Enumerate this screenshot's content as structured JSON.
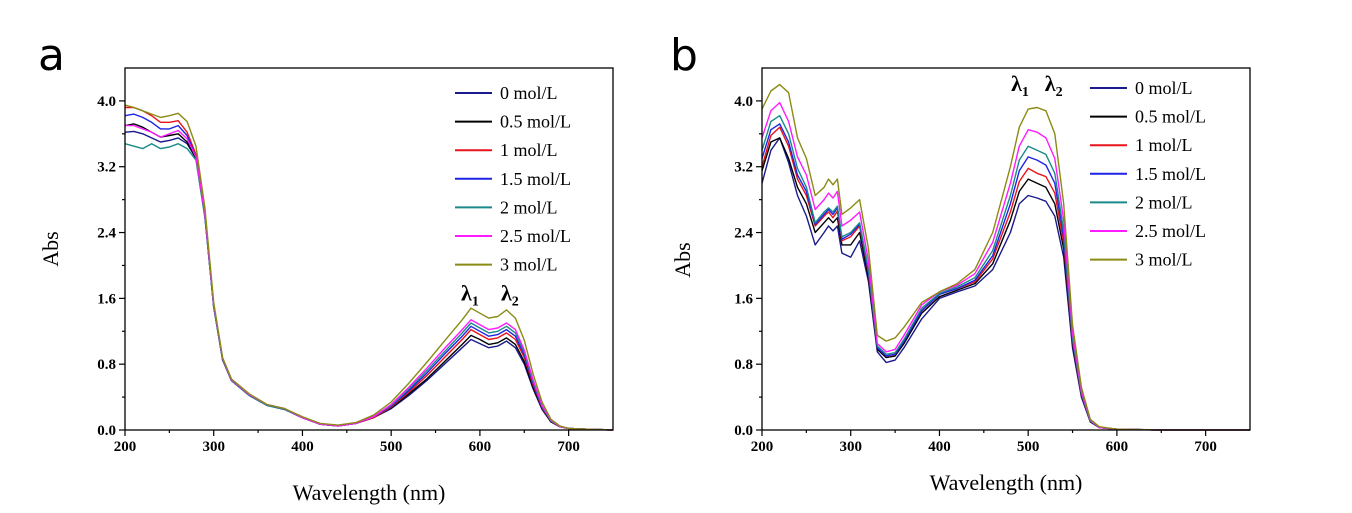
{
  "chart_data": [
    {
      "type": "line",
      "panel_label": "a",
      "xlabel": "Wavelength (nm)",
      "ylabel": "Abs",
      "xlim": [
        200,
        750
      ],
      "ylim": [
        0,
        4.4
      ],
      "xticks": [
        "200",
        "300",
        "400",
        "500",
        "600",
        "700"
      ],
      "yticks": [
        "0.0",
        "0.8",
        "1.6",
        "2.4",
        "3.2",
        "4.0"
      ],
      "legend_position": "top-right",
      "annotations": [
        {
          "main": "λ",
          "sub": "1",
          "x": 590,
          "y": 1.5
        },
        {
          "main": "λ",
          "sub": "2",
          "x": 635,
          "y": 1.5
        }
      ],
      "x": [
        200,
        210,
        220,
        230,
        240,
        250,
        260,
        270,
        280,
        290,
        300,
        310,
        320,
        340,
        360,
        380,
        400,
        420,
        440,
        460,
        480,
        500,
        520,
        540,
        560,
        580,
        590,
        600,
        610,
        620,
        630,
        640,
        650,
        660,
        670,
        680,
        690,
        700,
        720,
        750
      ],
      "series": [
        {
          "name": "0 mol/L",
          "color": "#1a1a8c",
          "values": [
            3.62,
            3.63,
            3.6,
            3.55,
            3.5,
            3.52,
            3.55,
            3.48,
            3.3,
            2.6,
            1.5,
            0.85,
            0.6,
            0.42,
            0.3,
            0.25,
            0.15,
            0.07,
            0.05,
            0.08,
            0.15,
            0.26,
            0.42,
            0.6,
            0.8,
            1.0,
            1.1,
            1.05,
            1.0,
            1.02,
            1.08,
            1.0,
            0.8,
            0.5,
            0.25,
            0.1,
            0.04,
            0.02,
            0.01,
            0.0
          ]
        },
        {
          "name": "0.5 mol/L",
          "color": "#000000",
          "values": [
            3.7,
            3.72,
            3.68,
            3.62,
            3.56,
            3.58,
            3.6,
            3.5,
            3.3,
            2.6,
            1.5,
            0.86,
            0.6,
            0.42,
            0.3,
            0.25,
            0.15,
            0.07,
            0.05,
            0.08,
            0.15,
            0.27,
            0.44,
            0.62,
            0.83,
            1.04,
            1.15,
            1.1,
            1.04,
            1.06,
            1.12,
            1.04,
            0.83,
            0.52,
            0.26,
            0.1,
            0.04,
            0.02,
            0.01,
            0.0
          ]
        },
        {
          "name": "1 mol/L",
          "color": "#e8141b",
          "values": [
            3.92,
            3.92,
            3.88,
            3.82,
            3.74,
            3.74,
            3.76,
            3.62,
            3.35,
            2.62,
            1.52,
            0.86,
            0.6,
            0.43,
            0.3,
            0.25,
            0.15,
            0.07,
            0.05,
            0.08,
            0.15,
            0.28,
            0.46,
            0.66,
            0.88,
            1.1,
            1.22,
            1.16,
            1.1,
            1.12,
            1.18,
            1.1,
            0.88,
            0.55,
            0.27,
            0.11,
            0.04,
            0.02,
            0.01,
            0.0
          ]
        },
        {
          "name": "1.5 mol/L",
          "color": "#1f23e6",
          "values": [
            3.82,
            3.84,
            3.8,
            3.74,
            3.66,
            3.66,
            3.7,
            3.58,
            3.32,
            2.6,
            1.5,
            0.86,
            0.6,
            0.42,
            0.3,
            0.25,
            0.15,
            0.07,
            0.05,
            0.08,
            0.16,
            0.29,
            0.48,
            0.69,
            0.92,
            1.14,
            1.26,
            1.2,
            1.14,
            1.16,
            1.22,
            1.14,
            0.91,
            0.57,
            0.28,
            0.11,
            0.04,
            0.02,
            0.01,
            0.0
          ]
        },
        {
          "name": "2 mol/L",
          "color": "#1a8a8a",
          "values": [
            3.48,
            3.45,
            3.42,
            3.48,
            3.42,
            3.44,
            3.48,
            3.42,
            3.28,
            2.58,
            1.5,
            0.86,
            0.6,
            0.42,
            0.3,
            0.25,
            0.15,
            0.07,
            0.05,
            0.08,
            0.16,
            0.3,
            0.5,
            0.72,
            0.95,
            1.18,
            1.3,
            1.24,
            1.18,
            1.2,
            1.26,
            1.18,
            0.94,
            0.59,
            0.29,
            0.11,
            0.04,
            0.02,
            0.01,
            0.0
          ]
        },
        {
          "name": "2.5 mol/L",
          "color": "#ff1aff",
          "values": [
            3.7,
            3.7,
            3.66,
            3.62,
            3.56,
            3.6,
            3.64,
            3.54,
            3.32,
            2.62,
            1.52,
            0.87,
            0.61,
            0.43,
            0.31,
            0.26,
            0.15,
            0.07,
            0.05,
            0.08,
            0.16,
            0.31,
            0.52,
            0.75,
            0.99,
            1.22,
            1.34,
            1.28,
            1.22,
            1.24,
            1.3,
            1.22,
            0.97,
            0.61,
            0.3,
            0.12,
            0.04,
            0.02,
            0.01,
            0.0
          ]
        },
        {
          "name": "3 mol/L",
          "color": "#8a8a14",
          "values": [
            3.95,
            3.92,
            3.88,
            3.84,
            3.8,
            3.82,
            3.85,
            3.75,
            3.45,
            2.7,
            1.55,
            0.88,
            0.62,
            0.44,
            0.31,
            0.26,
            0.16,
            0.08,
            0.06,
            0.09,
            0.18,
            0.34,
            0.57,
            0.82,
            1.08,
            1.34,
            1.48,
            1.42,
            1.36,
            1.38,
            1.46,
            1.36,
            1.09,
            0.68,
            0.34,
            0.13,
            0.05,
            0.02,
            0.01,
            0.0
          ]
        }
      ]
    },
    {
      "type": "line",
      "panel_label": "b",
      "xlabel": "Wavelength (nm)",
      "ylabel": "Abs",
      "xlim": [
        200,
        750
      ],
      "ylim": [
        0,
        4.4
      ],
      "xticks": [
        "200",
        "300",
        "400",
        "500",
        "600",
        "700"
      ],
      "yticks": [
        "0.0",
        "0.8",
        "1.6",
        "2.4",
        "3.2",
        "4.0"
      ],
      "legend_position": "top-right",
      "annotations": [
        {
          "main": "λ",
          "sub": "1",
          "x": 492,
          "y": 4.05
        },
        {
          "main": "λ",
          "sub": "2",
          "x": 530,
          "y": 4.05
        }
      ],
      "x": [
        200,
        210,
        220,
        230,
        240,
        250,
        260,
        270,
        275,
        280,
        285,
        290,
        300,
        310,
        320,
        330,
        340,
        350,
        360,
        380,
        400,
        420,
        440,
        460,
        480,
        490,
        500,
        510,
        520,
        530,
        540,
        550,
        560,
        570,
        580,
        600,
        650,
        700,
        750
      ],
      "series": [
        {
          "name": "0 mol/L",
          "color": "#1a1a8c",
          "values": [
            3.0,
            3.4,
            3.55,
            3.25,
            2.85,
            2.6,
            2.25,
            2.4,
            2.48,
            2.42,
            2.48,
            2.15,
            2.1,
            2.3,
            1.8,
            0.95,
            0.82,
            0.85,
            1.0,
            1.35,
            1.6,
            1.68,
            1.75,
            1.95,
            2.4,
            2.75,
            2.85,
            2.82,
            2.78,
            2.6,
            2.1,
            1.0,
            0.4,
            0.1,
            0.03,
            0.01,
            0.0,
            0.0,
            0.0
          ]
        },
        {
          "name": "0.5 mol/L",
          "color": "#000000",
          "values": [
            3.15,
            3.5,
            3.55,
            3.3,
            2.95,
            2.75,
            2.4,
            2.52,
            2.58,
            2.52,
            2.58,
            2.25,
            2.25,
            2.4,
            1.85,
            0.98,
            0.88,
            0.9,
            1.05,
            1.42,
            1.62,
            1.7,
            1.78,
            2.02,
            2.55,
            2.9,
            3.05,
            3.0,
            2.95,
            2.75,
            2.2,
            1.05,
            0.42,
            0.1,
            0.03,
            0.01,
            0.0,
            0.0,
            0.0
          ]
        },
        {
          "name": "1 mol/L",
          "color": "#e8141b",
          "values": [
            3.2,
            3.58,
            3.68,
            3.45,
            3.05,
            2.85,
            2.48,
            2.6,
            2.65,
            2.58,
            2.66,
            2.3,
            2.35,
            2.48,
            1.9,
            1.0,
            0.9,
            0.92,
            1.08,
            1.45,
            1.65,
            1.72,
            1.8,
            2.08,
            2.65,
            3.02,
            3.18,
            3.12,
            3.08,
            2.88,
            2.28,
            1.08,
            0.43,
            0.11,
            0.03,
            0.01,
            0.0,
            0.0,
            0.0
          ]
        },
        {
          "name": "1.5 mol/L",
          "color": "#1f23e6",
          "values": [
            3.3,
            3.65,
            3.72,
            3.5,
            3.1,
            2.9,
            2.5,
            2.62,
            2.68,
            2.62,
            2.7,
            2.32,
            2.38,
            2.5,
            1.92,
            1.0,
            0.9,
            0.92,
            1.08,
            1.45,
            1.65,
            1.72,
            1.82,
            2.12,
            2.75,
            3.15,
            3.32,
            3.28,
            3.22,
            3.0,
            2.35,
            1.1,
            0.44,
            0.11,
            0.03,
            0.01,
            0.0,
            0.0,
            0.0
          ]
        },
        {
          "name": "2 mol/L",
          "color": "#1a8a8a",
          "values": [
            3.4,
            3.75,
            3.82,
            3.6,
            3.18,
            2.95,
            2.52,
            2.65,
            2.7,
            2.65,
            2.72,
            2.35,
            2.4,
            2.52,
            1.95,
            1.02,
            0.92,
            0.94,
            1.1,
            1.48,
            1.66,
            1.74,
            1.85,
            2.18,
            2.85,
            3.28,
            3.45,
            3.4,
            3.35,
            3.12,
            2.42,
            1.12,
            0.45,
            0.11,
            0.03,
            0.01,
            0.0,
            0.0,
            0.0
          ]
        },
        {
          "name": "2.5 mol/L",
          "color": "#ff1aff",
          "values": [
            3.55,
            3.88,
            3.98,
            3.75,
            3.32,
            3.1,
            2.68,
            2.8,
            2.88,
            2.82,
            2.9,
            2.48,
            2.55,
            2.65,
            2.05,
            1.05,
            0.95,
            0.98,
            1.15,
            1.52,
            1.68,
            1.76,
            1.9,
            2.28,
            3.0,
            3.45,
            3.65,
            3.62,
            3.55,
            3.3,
            2.55,
            1.18,
            0.47,
            0.12,
            0.03,
            0.01,
            0.0,
            0.0,
            0.0
          ]
        },
        {
          "name": "3 mol/L",
          "color": "#8a8a14",
          "values": [
            3.9,
            4.12,
            4.2,
            4.1,
            3.55,
            3.3,
            2.85,
            2.95,
            3.05,
            2.98,
            3.05,
            2.62,
            2.7,
            2.8,
            2.2,
            1.15,
            1.08,
            1.12,
            1.25,
            1.55,
            1.68,
            1.78,
            1.95,
            2.4,
            3.2,
            3.68,
            3.9,
            3.92,
            3.88,
            3.6,
            2.75,
            1.28,
            0.52,
            0.13,
            0.04,
            0.01,
            0.0,
            0.0,
            0.0
          ]
        }
      ]
    }
  ]
}
